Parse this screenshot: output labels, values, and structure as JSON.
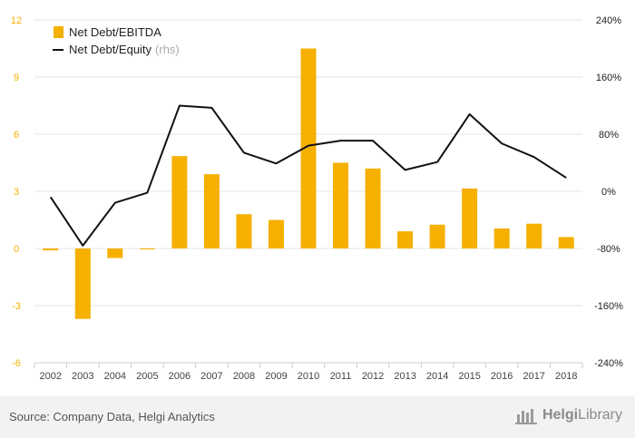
{
  "chart_data": {
    "type": "bar+line",
    "categories": [
      "2002",
      "2003",
      "2004",
      "2005",
      "2006",
      "2007",
      "2008",
      "2009",
      "2010",
      "2011",
      "2012",
      "2013",
      "2014",
      "2015",
      "2016",
      "2017",
      "2018"
    ],
    "series": [
      {
        "name": "Net Debt/EBITDA",
        "type": "bar",
        "axis": "left",
        "color": "#f5b000",
        "values": [
          -0.1,
          -3.7,
          -0.5,
          -0.05,
          4.85,
          3.9,
          1.8,
          1.5,
          10.5,
          4.5,
          4.2,
          0.9,
          1.25,
          3.15,
          1.05,
          1.3,
          0.6
        ]
      },
      {
        "name": "Net Debt/Equity",
        "type": "line",
        "axis": "right",
        "color": "#111111",
        "values": [
          -8,
          -76,
          -16,
          -2,
          120,
          117,
          54,
          39,
          64,
          71,
          71,
          30,
          41,
          108,
          67,
          48,
          19
        ]
      }
    ],
    "legend": {
      "position": "top-left",
      "items": [
        {
          "label": "Net Debt/EBITDA",
          "note": ""
        },
        {
          "label": "Net Debt/Equity",
          "note": "(rhs)"
        }
      ]
    },
    "y_left": {
      "ticks": [
        12,
        9,
        6,
        3,
        0,
        -3,
        -6
      ],
      "tick_labels": [
        "12",
        "9",
        "6",
        "3",
        "0",
        "-3",
        "-6"
      ],
      "range": [
        -6,
        12
      ],
      "color": "#f5b000"
    },
    "y_right": {
      "ticks": [
        240,
        160,
        80,
        0,
        -80,
        -160,
        -240
      ],
      "tick_labels": [
        "240%",
        "160%",
        "80%",
        "0%",
        "-80%",
        "-160%",
        "-240%"
      ],
      "range": [
        -240,
        240
      ]
    },
    "grid": true
  },
  "footer": {
    "source": "Source: Company Data, Helgi Analytics",
    "brand_prefix": "Helgi",
    "brand_suffix": "Library",
    "brand_icon": "helgi-library-logo-icon"
  }
}
